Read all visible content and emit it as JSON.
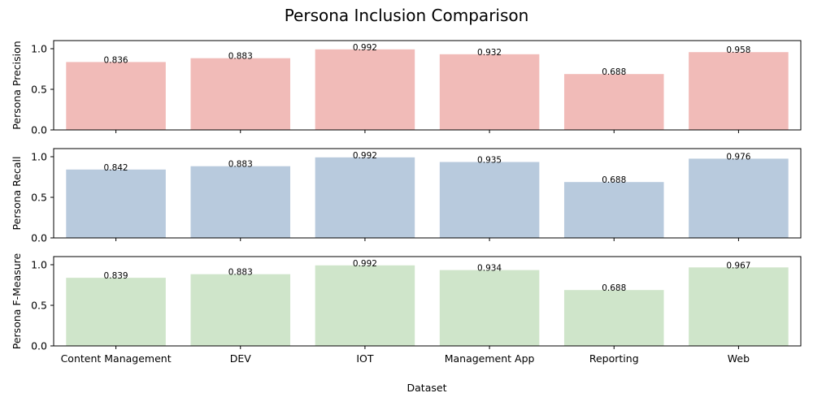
{
  "chart_data": {
    "type": "bar",
    "title": "Persona Inclusion Comparison",
    "xlabel": "Dataset",
    "categories": [
      "Content Management",
      "DEV",
      "IOT",
      "Management App",
      "Reporting",
      "Web"
    ],
    "ylim": [
      0,
      1.1
    ],
    "yticks": [
      "0.0",
      "0.5",
      "1.0"
    ],
    "grid": false,
    "panels": [
      {
        "ylabel": "Persona Precision",
        "color": "#f1bbb8",
        "values": [
          0.836,
          0.883,
          0.992,
          0.932,
          0.688,
          0.958
        ]
      },
      {
        "ylabel": "Persona Recall",
        "color": "#b8cadd",
        "values": [
          0.842,
          0.883,
          0.992,
          0.935,
          0.688,
          0.976
        ]
      },
      {
        "ylabel": "Persona F-Measure",
        "color": "#cfe5ca",
        "values": [
          0.839,
          0.883,
          0.992,
          0.934,
          0.688,
          0.967
        ]
      }
    ]
  }
}
